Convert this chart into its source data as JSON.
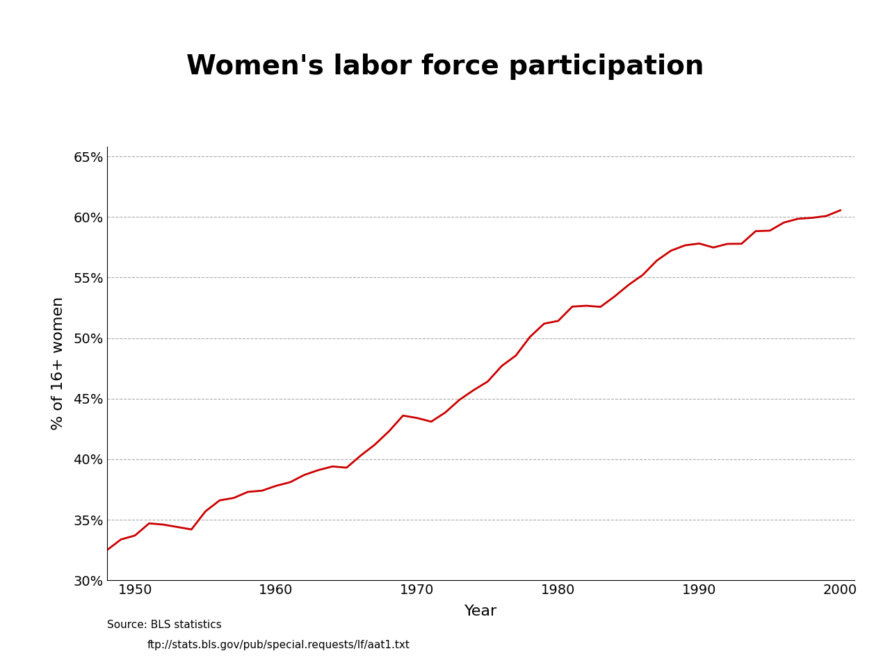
{
  "title": "Women's labor force participation",
  "xlabel": "Year",
  "ylabel": "% of 16+ women",
  "source_line1": "Source: BLS statistics",
  "source_line2": "ftp://stats.bls.gov/pub/special.requests/lf/aat1.txt",
  "line_color": "#cc0000",
  "line_width": 2.0,
  "background_color": "#ffffff",
  "xlim": [
    1948,
    2001
  ],
  "ylim": [
    0.3,
    0.658
  ],
  "yticks": [
    0.3,
    0.35,
    0.4,
    0.45,
    0.5,
    0.55,
    0.6,
    0.65
  ],
  "xticks": [
    1950,
    1960,
    1970,
    1980,
    1990,
    2000
  ],
  "title_fontsize": 28,
  "axis_label_fontsize": 16,
  "tick_fontsize": 14,
  "source_fontsize": 11,
  "years": [
    1948,
    1949,
    1950,
    1951,
    1952,
    1953,
    1954,
    1955,
    1956,
    1957,
    1958,
    1959,
    1960,
    1961,
    1962,
    1963,
    1964,
    1965,
    1966,
    1967,
    1968,
    1969,
    1970,
    1971,
    1972,
    1973,
    1974,
    1975,
    1976,
    1977,
    1978,
    1979,
    1980,
    1981,
    1982,
    1983,
    1984,
    1985,
    1986,
    1987,
    1988,
    1989,
    1990,
    1991,
    1992,
    1993,
    1994,
    1995,
    1996,
    1997,
    1998,
    1999,
    2000
  ],
  "values": [
    0.3248,
    0.3337,
    0.337,
    0.347,
    0.346,
    0.344,
    0.342,
    0.357,
    0.366,
    0.368,
    0.373,
    0.374,
    0.378,
    0.381,
    0.387,
    0.391,
    0.394,
    0.393,
    0.403,
    0.412,
    0.423,
    0.436,
    0.434,
    0.431,
    0.4386,
    0.449,
    0.457,
    0.4641,
    0.477,
    0.4856,
    0.501,
    0.5119,
    0.5142,
    0.526,
    0.5267,
    0.5258,
    0.5344,
    0.544,
    0.5522,
    0.5641,
    0.5722,
    0.5766,
    0.5781,
    0.5748,
    0.5778,
    0.5779,
    0.5883,
    0.5887,
    0.5954,
    0.5985,
    0.5993,
    0.6008,
    0.6055
  ]
}
